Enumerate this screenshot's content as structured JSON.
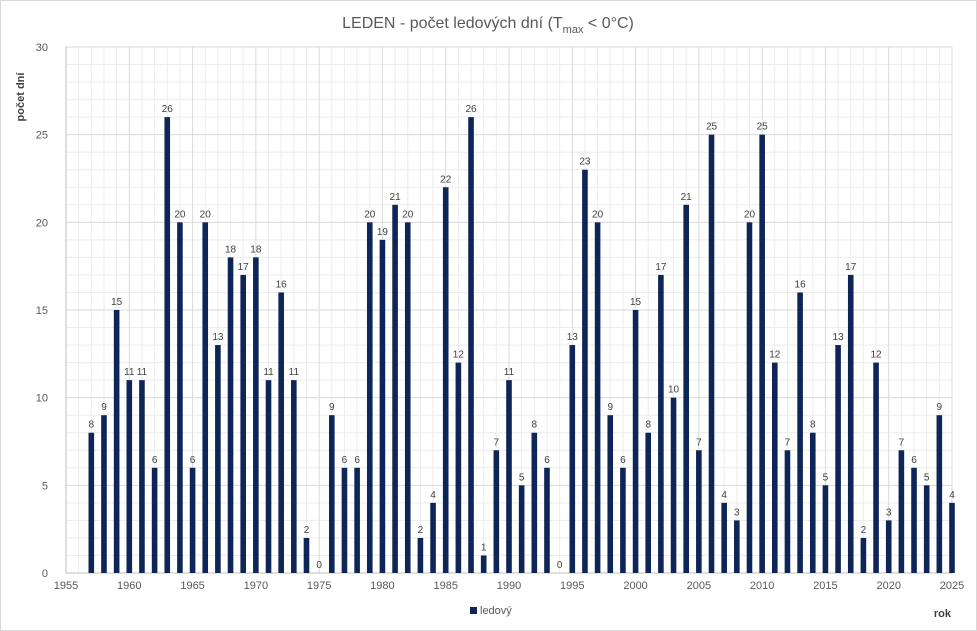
{
  "chart_data": {
    "type": "bar",
    "title": {
      "main": "LEDEN - počet ledových dní (T",
      "subscript": "max",
      "suffix": " < 0°C)"
    },
    "ylabel": "počet dní",
    "xlabel": "rok",
    "xlim": [
      1955,
      2025
    ],
    "ylim": [
      0,
      30
    ],
    "x_ticks": [
      "1955",
      "1960",
      "1965",
      "1970",
      "1975",
      "1980",
      "1985",
      "1990",
      "1995",
      "2000",
      "2005",
      "2010",
      "2015",
      "2020",
      "2025"
    ],
    "y_ticks": [
      "0",
      "5",
      "10",
      "15",
      "20",
      "25",
      "30"
    ],
    "grid": true,
    "legend": "bottom",
    "series": [
      {
        "name": "ledový",
        "color": "#0e2557",
        "points": [
          {
            "x": 1957,
            "y": 8
          },
          {
            "x": 1958,
            "y": 9
          },
          {
            "x": 1959,
            "y": 15
          },
          {
            "x": 1960,
            "y": 11
          },
          {
            "x": 1961,
            "y": 11
          },
          {
            "x": 1962,
            "y": 6
          },
          {
            "x": 1963,
            "y": 26
          },
          {
            "x": 1964,
            "y": 20
          },
          {
            "x": 1965,
            "y": 6
          },
          {
            "x": 1966,
            "y": 20
          },
          {
            "x": 1967,
            "y": 13
          },
          {
            "x": 1968,
            "y": 18
          },
          {
            "x": 1969,
            "y": 17
          },
          {
            "x": 1970,
            "y": 18
          },
          {
            "x": 1971,
            "y": 11
          },
          {
            "x": 1972,
            "y": 16
          },
          {
            "x": 1973,
            "y": 11
          },
          {
            "x": 1974,
            "y": 2
          },
          {
            "x": 1975,
            "y": 0
          },
          {
            "x": 1976,
            "y": 9
          },
          {
            "x": 1977,
            "y": 6
          },
          {
            "x": 1978,
            "y": 6
          },
          {
            "x": 1979,
            "y": 20
          },
          {
            "x": 1980,
            "y": 19
          },
          {
            "x": 1981,
            "y": 21
          },
          {
            "x": 1982,
            "y": 20
          },
          {
            "x": 1983,
            "y": 2
          },
          {
            "x": 1984,
            "y": 4
          },
          {
            "x": 1985,
            "y": 22
          },
          {
            "x": 1986,
            "y": 12
          },
          {
            "x": 1987,
            "y": 26
          },
          {
            "x": 1988,
            "y": 1
          },
          {
            "x": 1989,
            "y": 7
          },
          {
            "x": 1990,
            "y": 11
          },
          {
            "x": 1991,
            "y": 5
          },
          {
            "x": 1992,
            "y": 8
          },
          {
            "x": 1993,
            "y": 6
          },
          {
            "x": 1994,
            "y": 0
          },
          {
            "x": 1995,
            "y": 13
          },
          {
            "x": 1996,
            "y": 23
          },
          {
            "x": 1997,
            "y": 20
          },
          {
            "x": 1998,
            "y": 9
          },
          {
            "x": 1999,
            "y": 6
          },
          {
            "x": 2000,
            "y": 15
          },
          {
            "x": 2001,
            "y": 8
          },
          {
            "x": 2002,
            "y": 17
          },
          {
            "x": 2003,
            "y": 10
          },
          {
            "x": 2004,
            "y": 21
          },
          {
            "x": 2005,
            "y": 7
          },
          {
            "x": 2006,
            "y": 25
          },
          {
            "x": 2007,
            "y": 4
          },
          {
            "x": 2008,
            "y": 3
          },
          {
            "x": 2009,
            "y": 20
          },
          {
            "x": 2010,
            "y": 25
          },
          {
            "x": 2011,
            "y": 12
          },
          {
            "x": 2012,
            "y": 7
          },
          {
            "x": 2013,
            "y": 16
          },
          {
            "x": 2014,
            "y": 8
          },
          {
            "x": 2015,
            "y": 5
          },
          {
            "x": 2016,
            "y": 13
          },
          {
            "x": 2017,
            "y": 17
          },
          {
            "x": 2018,
            "y": 2
          },
          {
            "x": 2019,
            "y": 12
          },
          {
            "x": 2020,
            "y": 3
          },
          {
            "x": 2021,
            "y": 7
          },
          {
            "x": 2022,
            "y": 6
          },
          {
            "x": 2023,
            "y": 5
          },
          {
            "x": 2024,
            "y": 9
          },
          {
            "x": 2025,
            "y": 4
          }
        ]
      }
    ]
  },
  "colors": {
    "grid_major": "#d9d9d9",
    "grid_minor": "#ececec",
    "axis": "#bfbfbf",
    "text": "#595959",
    "border": "#d9d9d9"
  }
}
